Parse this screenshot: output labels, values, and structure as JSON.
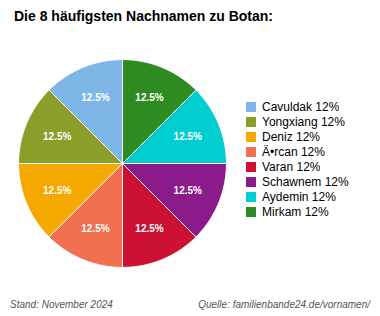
{
  "chart_data": {
    "type": "pie",
    "title": "Die 8 häufigsten Nachnamen zu Botan:",
    "categories": [
      "Cavuldak 12%",
      "Yongxiang 12%",
      "Deniz 12%",
      "Ä•rcan 12%",
      "Varan 12%",
      "Schawnem 12%",
      "Aydemin 12%",
      "Mirkam 12%"
    ],
    "values": [
      12.5,
      12.5,
      12.5,
      12.5,
      12.5,
      12.5,
      12.5,
      12.5
    ],
    "value_labels": [
      "12.5%",
      "12.5%",
      "12.5%",
      "12.5%",
      "12.5%",
      "12.5%",
      "12.5%",
      "12.5%"
    ],
    "data_labels": true,
    "colors": [
      "#7EB6E8",
      "#8B9E2A",
      "#F5A800",
      "#F07050",
      "#CC1133",
      "#8B1A8B",
      "#00CED1",
      "#2E8B22"
    ],
    "legend": "right",
    "annotations": [
      "Stand: November 2024",
      "Quelle: familienbande24.de/vornamen/"
    ]
  }
}
